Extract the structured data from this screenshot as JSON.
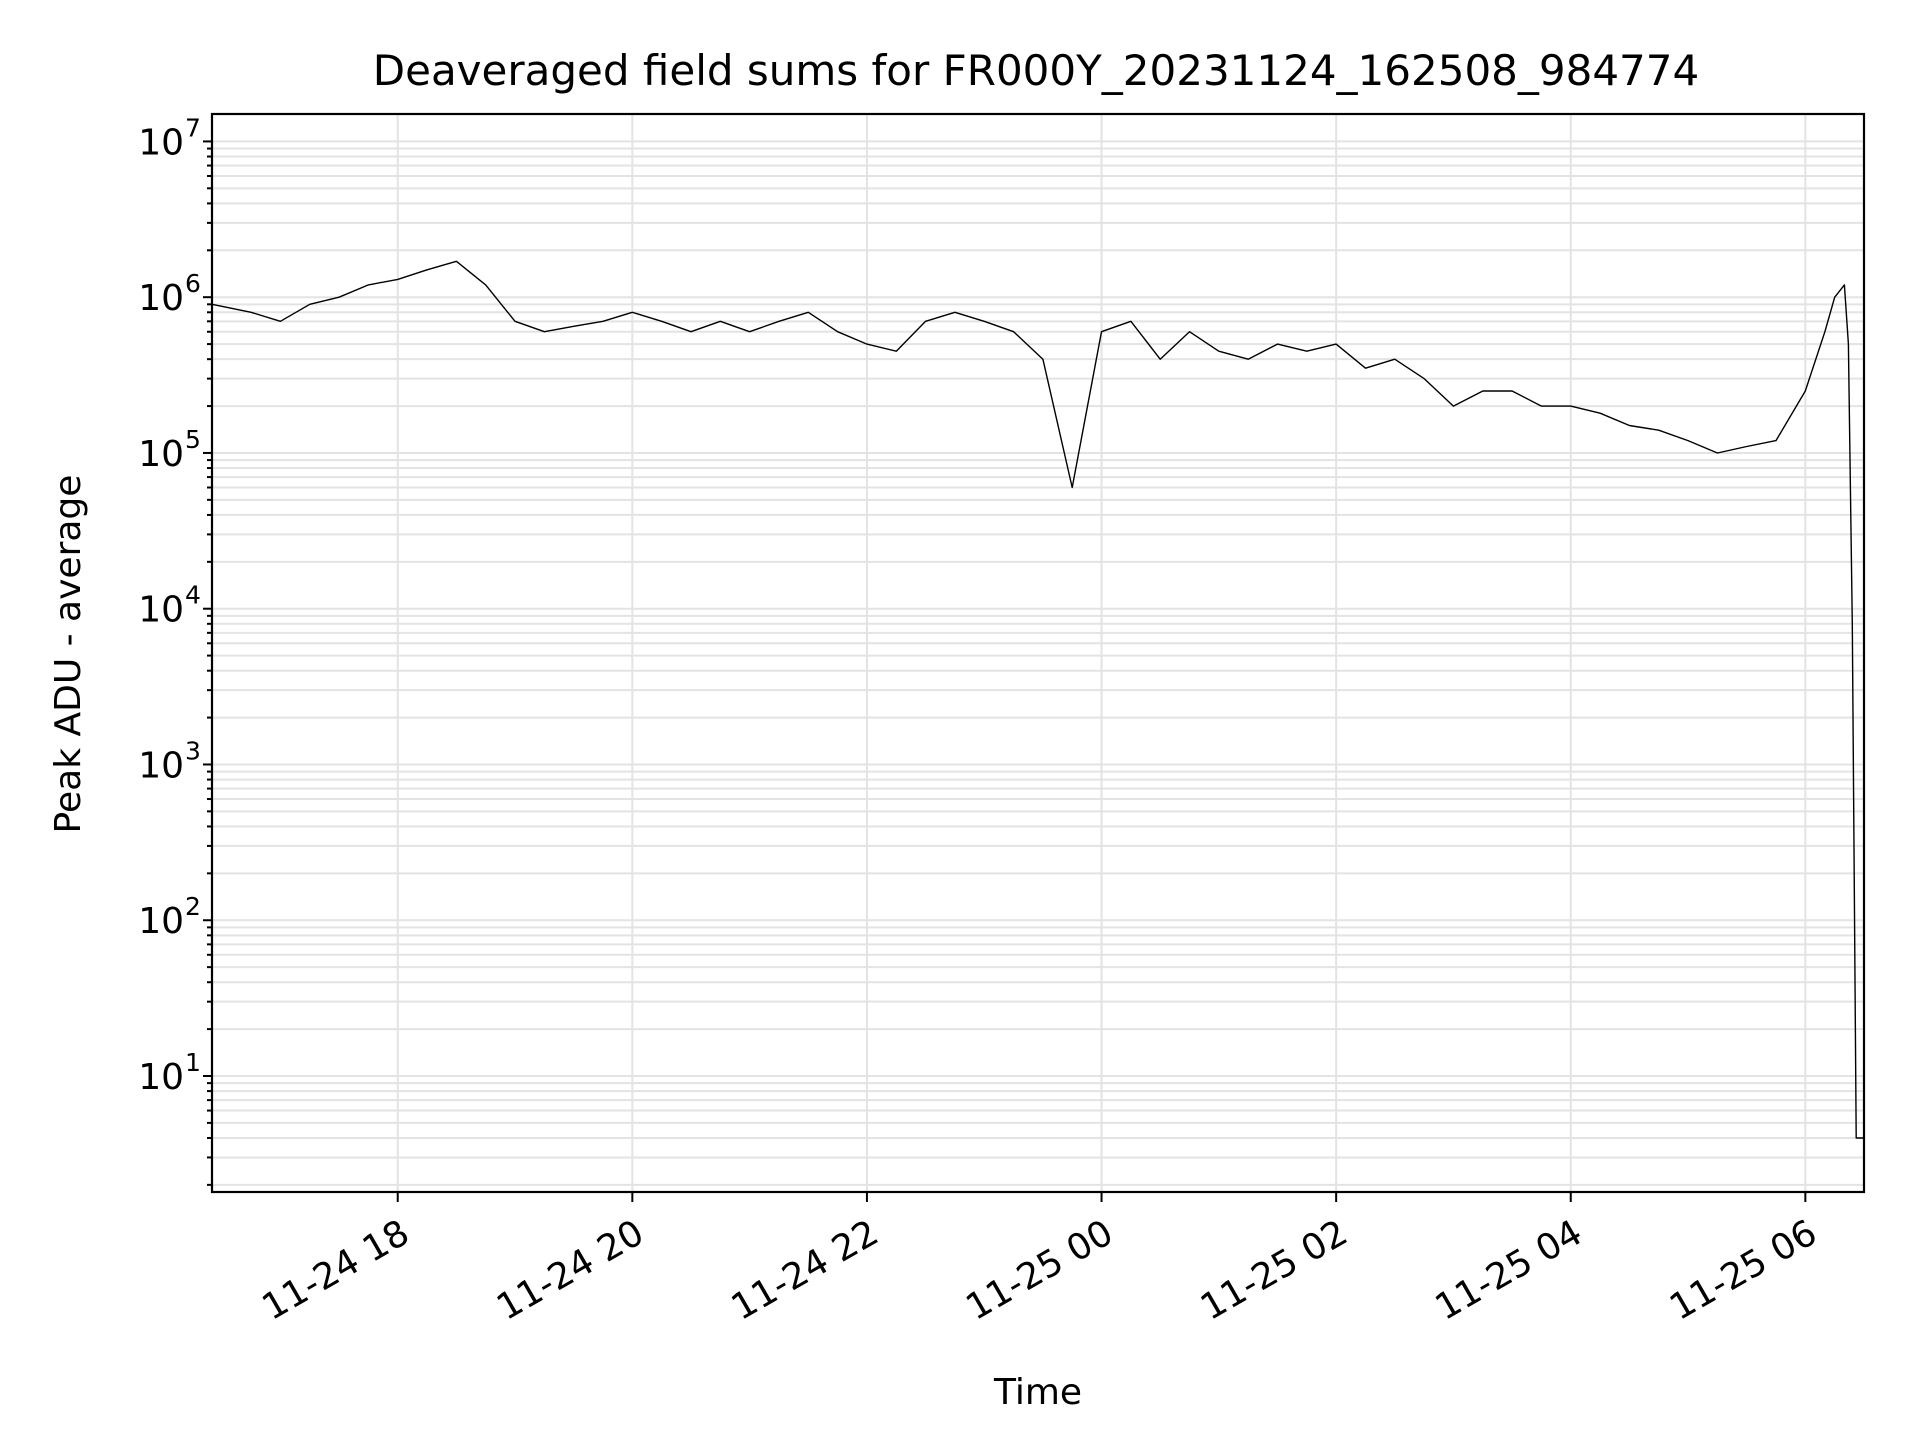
{
  "chart_data": {
    "type": "line",
    "title": "Deaveraged field sums for FR000Y_20231124_162508_984774",
    "xlabel": "Time",
    "ylabel": "Peak ADU - average",
    "yscale": "log",
    "grid": true,
    "xlim": [
      "2023-11-24T16:25",
      "2023-11-25T06:30"
    ],
    "ylim": [
      1.8,
      15000000
    ],
    "x_tick_values": [
      "2023-11-24T18:00",
      "2023-11-24T20:00",
      "2023-11-24T22:00",
      "2023-11-25T00:00",
      "2023-11-25T02:00",
      "2023-11-25T04:00",
      "2023-11-25T06:00"
    ],
    "x_tick_labels": [
      "11-24 18",
      "11-24 20",
      "11-24 22",
      "11-25 00",
      "11-25 02",
      "11-25 04",
      "11-25 06"
    ],
    "y_tick_values": [
      10,
      100,
      1000,
      10000,
      100000,
      1000000,
      10000000
    ],
    "y_tick_bases": [
      "10",
      "10",
      "10",
      "10",
      "10",
      "10",
      "10"
    ],
    "y_tick_exponents": [
      "1",
      "2",
      "3",
      "4",
      "5",
      "6",
      "7"
    ],
    "series_color": "#000000",
    "series": [
      {
        "x": [
          "2023-11-24T16:25",
          "2023-11-24T16:45",
          "2023-11-24T17:00",
          "2023-11-24T17:15",
          "2023-11-24T17:30",
          "2023-11-24T17:45",
          "2023-11-24T18:00",
          "2023-11-24T18:15",
          "2023-11-24T18:30",
          "2023-11-24T18:45",
          "2023-11-24T19:00",
          "2023-11-24T19:15",
          "2023-11-24T19:30",
          "2023-11-24T19:45",
          "2023-11-24T20:00",
          "2023-11-24T20:15",
          "2023-11-24T20:30",
          "2023-11-24T20:45",
          "2023-11-24T21:00",
          "2023-11-24T21:15",
          "2023-11-24T21:30",
          "2023-11-24T21:45",
          "2023-11-24T22:00",
          "2023-11-24T22:15",
          "2023-11-24T22:30",
          "2023-11-24T22:45",
          "2023-11-24T23:00",
          "2023-11-24T23:15",
          "2023-11-24T23:30",
          "2023-11-24T23:45",
          "2023-11-25T00:00",
          "2023-11-25T00:15",
          "2023-11-25T00:30",
          "2023-11-25T00:45",
          "2023-11-25T01:00",
          "2023-11-25T01:15",
          "2023-11-25T01:30",
          "2023-11-25T01:45",
          "2023-11-25T02:00",
          "2023-11-25T02:15",
          "2023-11-25T02:30",
          "2023-11-25T02:45",
          "2023-11-25T03:00",
          "2023-11-25T03:15",
          "2023-11-25T03:30",
          "2023-11-25T03:45",
          "2023-11-25T04:00",
          "2023-11-25T04:15",
          "2023-11-25T04:30",
          "2023-11-25T04:45",
          "2023-11-25T05:00",
          "2023-11-25T05:15",
          "2023-11-25T05:30",
          "2023-11-25T05:45",
          "2023-11-25T06:00",
          "2023-11-25T06:10",
          "2023-11-25T06:15",
          "2023-11-25T06:20",
          "2023-11-25T06:22",
          "2023-11-25T06:24",
          "2023-11-25T06:26",
          "2023-11-25T06:30"
        ],
        "y": [
          900000,
          800000,
          700000,
          900000,
          1000000,
          1200000,
          1300000,
          1500000,
          1700000,
          1200000,
          700000,
          600000,
          650000,
          700000,
          800000,
          700000,
          600000,
          700000,
          600000,
          700000,
          800000,
          600000,
          500000,
          450000,
          700000,
          800000,
          700000,
          600000,
          400000,
          60000,
          600000,
          700000,
          400000,
          600000,
          450000,
          400000,
          500000,
          450000,
          500000,
          350000,
          400000,
          300000,
          200000,
          250000,
          250000,
          200000,
          200000,
          180000,
          150000,
          140000,
          120000,
          100000,
          110000,
          120000,
          250000,
          600000,
          1000000,
          1200000,
          500000,
          8000,
          4,
          4
        ]
      }
    ]
  }
}
